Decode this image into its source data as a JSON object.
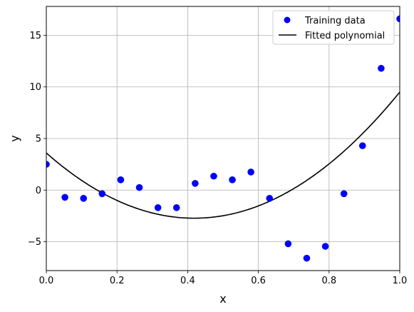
{
  "chart_data": {
    "type": "scatter",
    "title": "",
    "xlabel": "x",
    "ylabel": "y",
    "xlim": [
      0.0,
      1.0
    ],
    "ylim": [
      -7.8,
      17.8
    ],
    "grid": true,
    "legend_position": "top-right",
    "xticks": [
      0.0,
      0.2,
      0.4,
      0.6,
      0.8,
      1.0
    ],
    "xtick_labels": [
      "0.0",
      "0.2",
      "0.4",
      "0.6",
      "0.8",
      "1.0"
    ],
    "yticks": [
      -5,
      0,
      5,
      10,
      15
    ],
    "ytick_labels": [
      "−5",
      "0",
      "5",
      "10",
      "15"
    ],
    "series": [
      {
        "name": "Training data",
        "kind": "scatter",
        "color": "#0000ff",
        "x": [
          0.0,
          0.0526,
          0.1053,
          0.1579,
          0.2105,
          0.2632,
          0.3158,
          0.3684,
          0.4211,
          0.4737,
          0.5263,
          0.5789,
          0.6316,
          0.6842,
          0.7368,
          0.7895,
          0.8421,
          0.8947,
          0.9474,
          1.0
        ],
        "y": [
          2.5,
          -0.7,
          -0.8,
          -0.35,
          1.0,
          0.25,
          -1.7,
          -1.7,
          0.65,
          1.35,
          1.0,
          1.75,
          -0.8,
          -5.2,
          -6.6,
          -5.45,
          -0.35,
          4.3,
          11.8,
          16.6
        ]
      },
      {
        "name": "Fitted polynomial",
        "kind": "line",
        "color": "#000000",
        "coefficients": [
          3.6,
          -30.23,
          36.13
        ]
      }
    ]
  }
}
